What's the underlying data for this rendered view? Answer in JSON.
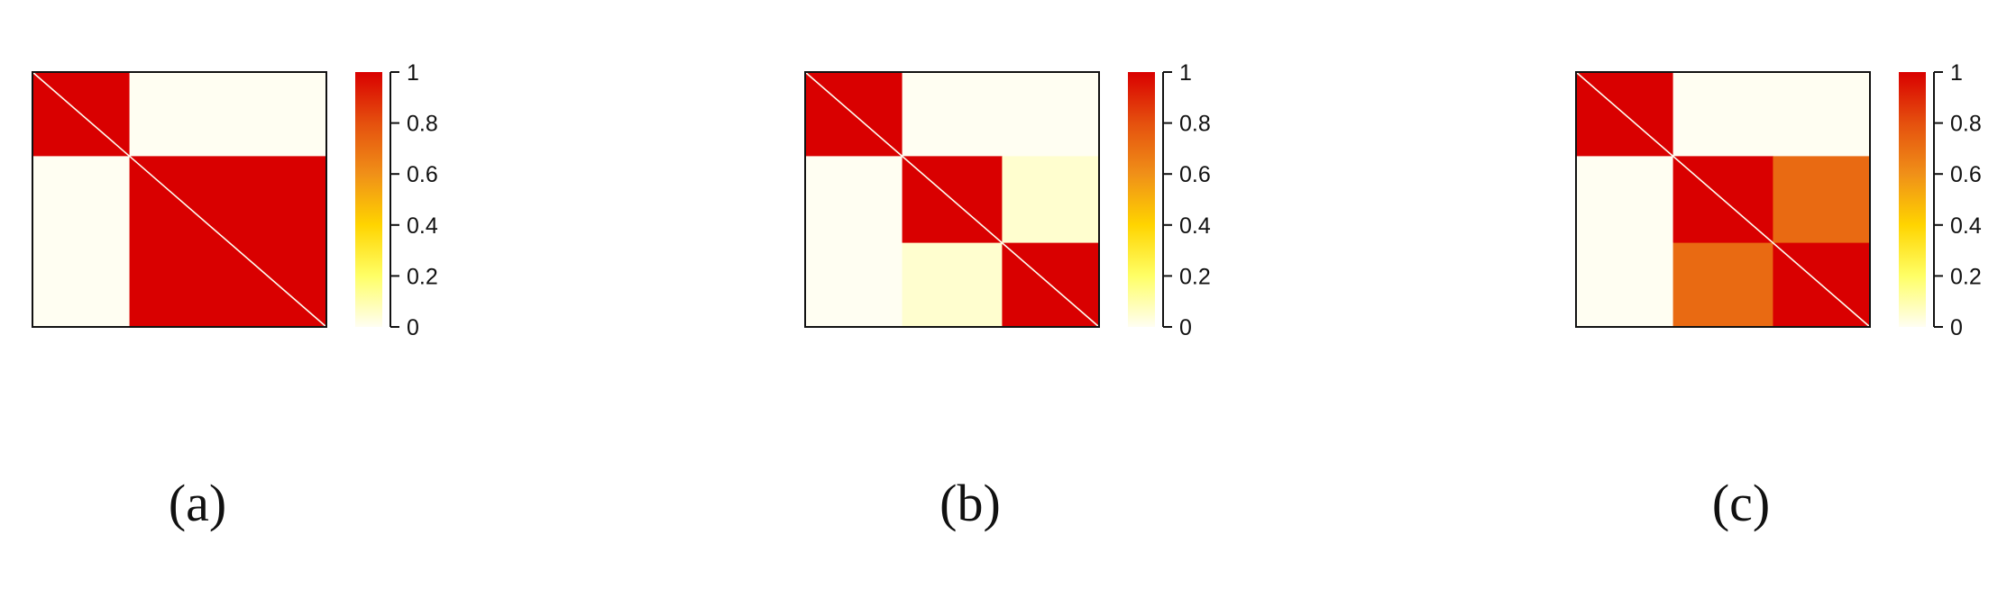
{
  "chart_data": [
    {
      "type": "heatmap",
      "panel_label": "(a)",
      "blocks": [
        0.33,
        0.67
      ],
      "block_values": [
        [
          1,
          0
        ],
        [
          0,
          1
        ]
      ],
      "diagonal_value": 0,
      "colorbar": {
        "min": 0,
        "max": 1,
        "ticks": [
          "0",
          "0.2",
          "0.4",
          "0.6",
          "0.8",
          "1"
        ]
      },
      "colormap": [
        "#fffef2",
        "#ffff66",
        "#ffd400",
        "#f09018",
        "#e5500e",
        "#d90000"
      ]
    },
    {
      "type": "heatmap",
      "panel_label": "(b)",
      "blocks": [
        0.33,
        0.34,
        0.33
      ],
      "block_values": [
        [
          1,
          0,
          0
        ],
        [
          0,
          1,
          0.05
        ],
        [
          0,
          0.05,
          1
        ]
      ],
      "diagonal_value": 0,
      "colorbar": {
        "min": 0,
        "max": 1,
        "ticks": [
          "0",
          "0.2",
          "0.4",
          "0.6",
          "0.8",
          "1"
        ]
      },
      "colormap": [
        "#fffef2",
        "#ffff66",
        "#ffd400",
        "#f09018",
        "#e5500e",
        "#d90000"
      ]
    },
    {
      "type": "heatmap",
      "panel_label": "(c)",
      "blocks": [
        0.33,
        0.34,
        0.33
      ],
      "block_values": [
        [
          1,
          0,
          0
        ],
        [
          0,
          1,
          0.72
        ],
        [
          0,
          0.72,
          1
        ]
      ],
      "diagonal_value": 0,
      "colorbar": {
        "min": 0,
        "max": 1,
        "ticks": [
          "0",
          "0.2",
          "0.4",
          "0.6",
          "0.8",
          "1"
        ]
      },
      "colormap": [
        "#fffef2",
        "#ffff66",
        "#ffd400",
        "#f09018",
        "#e5500e",
        "#d90000"
      ]
    }
  ]
}
